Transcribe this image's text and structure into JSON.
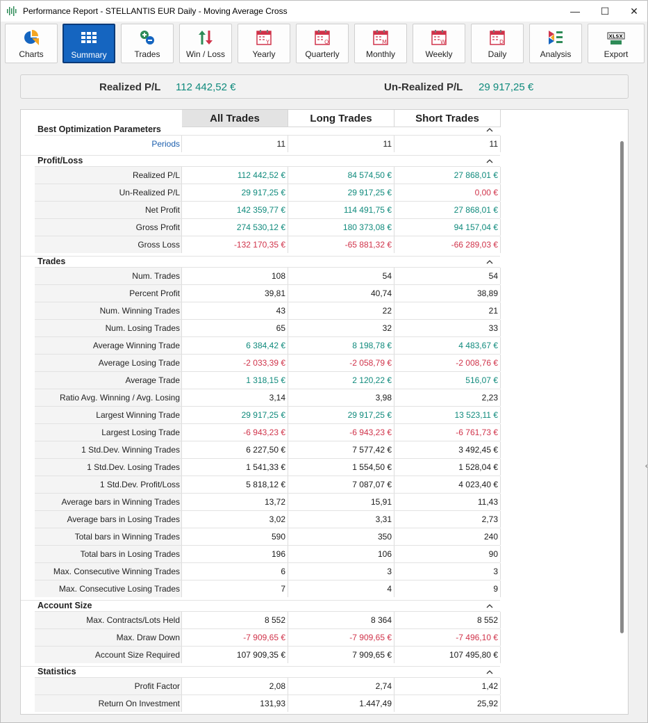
{
  "window": {
    "title": "Performance Report - STELLANTIS EUR Daily - Moving Average Cross",
    "min_glyph": "—",
    "max_glyph": "☐",
    "close_glyph": "✕"
  },
  "toolbar": {
    "buttons": [
      {
        "label": "Charts",
        "icon": "pie-chart-icon"
      },
      {
        "label": "Summary",
        "icon": "grid-icon",
        "active": true
      },
      {
        "label": "Trades",
        "icon": "add-remove-icon"
      },
      {
        "label": "Win / Loss",
        "icon": "up-down-arrows-icon"
      },
      {
        "label": "Yearly",
        "icon": "calendar-y-icon",
        "letter": "Y"
      },
      {
        "label": "Quarterly",
        "icon": "calendar-q-icon",
        "letter": "Q"
      },
      {
        "label": "Monthly",
        "icon": "calendar-m-icon",
        "letter": "M"
      },
      {
        "label": "Weekly",
        "icon": "calendar-w-icon",
        "letter": "W"
      },
      {
        "label": "Daily",
        "icon": "calendar-d-icon",
        "letter": "D"
      },
      {
        "label": "Analysis",
        "icon": "analysis-icon"
      },
      {
        "label": "Export",
        "icon": "xlsx-icon",
        "letter": "XLSX"
      }
    ]
  },
  "summary_header": {
    "realized_label": "Realized P/L",
    "realized_value": "112 442,52 €",
    "unrealized_label": "Un-Realized P/L",
    "unrealized_value": "29 917,25 €"
  },
  "columns": [
    "All Trades",
    "Long Trades",
    "Short Trades"
  ],
  "colors": {
    "positive": "#0f8a7c",
    "negative": "#d0334a",
    "accent": "#1565c0"
  },
  "sections": {
    "best": {
      "title": "Best Optimization Parameters",
      "rows": [
        {
          "label": "Periods",
          "v": [
            "11",
            "11",
            "11"
          ],
          "s": [
            "neu",
            "neu",
            "neu"
          ]
        }
      ]
    },
    "pl": {
      "title": "Profit/Loss",
      "rows": [
        {
          "label": "Realized P/L",
          "v": [
            "112 442,52 €",
            "84 574,50 €",
            "27 868,01 €"
          ],
          "s": [
            "pos",
            "pos",
            "pos"
          ]
        },
        {
          "label": "Un-Realized P/L",
          "v": [
            "29 917,25 €",
            "29 917,25 €",
            "0,00 €"
          ],
          "s": [
            "pos",
            "pos",
            "neg"
          ]
        },
        {
          "label": "Net Profit",
          "v": [
            "142 359,77 €",
            "114 491,75 €",
            "27 868,01 €"
          ],
          "s": [
            "pos",
            "pos",
            "pos"
          ]
        },
        {
          "label": "Gross Profit",
          "v": [
            "274 530,12 €",
            "180 373,08 €",
            "94 157,04 €"
          ],
          "s": [
            "pos",
            "pos",
            "pos"
          ]
        },
        {
          "label": "Gross Loss",
          "v": [
            "-132 170,35 €",
            "-65 881,32 €",
            "-66 289,03 €"
          ],
          "s": [
            "neg",
            "neg",
            "neg"
          ]
        }
      ]
    },
    "trades": {
      "title": "Trades",
      "rows": [
        {
          "label": "Num. Trades",
          "v": [
            "108",
            "54",
            "54"
          ],
          "s": [
            "neu",
            "neu",
            "neu"
          ]
        },
        {
          "label": "Percent Profit",
          "v": [
            "39,81",
            "40,74",
            "38,89"
          ],
          "s": [
            "neu",
            "neu",
            "neu"
          ]
        },
        {
          "label": "Num. Winning Trades",
          "v": [
            "43",
            "22",
            "21"
          ],
          "s": [
            "neu",
            "neu",
            "neu"
          ]
        },
        {
          "label": "Num. Losing Trades",
          "v": [
            "65",
            "32",
            "33"
          ],
          "s": [
            "neu",
            "neu",
            "neu"
          ]
        },
        {
          "label": "Average Winning Trade",
          "v": [
            "6 384,42 €",
            "8 198,78 €",
            "4 483,67 €"
          ],
          "s": [
            "pos",
            "pos",
            "pos"
          ]
        },
        {
          "label": "Average Losing Trade",
          "v": [
            "-2 033,39 €",
            "-2 058,79 €",
            "-2 008,76 €"
          ],
          "s": [
            "neg",
            "neg",
            "neg"
          ]
        },
        {
          "label": "Average Trade",
          "v": [
            "1 318,15 €",
            "2 120,22 €",
            "516,07 €"
          ],
          "s": [
            "pos",
            "pos",
            "pos"
          ]
        },
        {
          "label": "Ratio Avg. Winning / Avg. Losing",
          "v": [
            "3,14",
            "3,98",
            "2,23"
          ],
          "s": [
            "neu",
            "neu",
            "neu"
          ]
        },
        {
          "label": "Largest Winning Trade",
          "v": [
            "29 917,25 €",
            "29 917,25 €",
            "13 523,11 €"
          ],
          "s": [
            "pos",
            "pos",
            "pos"
          ]
        },
        {
          "label": "Largest Losing Trade",
          "v": [
            "-6 943,23 €",
            "-6 943,23 €",
            "-6 761,73 €"
          ],
          "s": [
            "neg",
            "neg",
            "neg"
          ]
        },
        {
          "label": "1 Std.Dev. Winning Trades",
          "v": [
            "6 227,50 €",
            "7 577,42 €",
            "3 492,45 €"
          ],
          "s": [
            "neu",
            "neu",
            "neu"
          ]
        },
        {
          "label": "1 Std.Dev. Losing Trades",
          "v": [
            "1 541,33 €",
            "1 554,50 €",
            "1 528,04 €"
          ],
          "s": [
            "neu",
            "neu",
            "neu"
          ]
        },
        {
          "label": "1 Std.Dev. Profit/Loss",
          "v": [
            "5 818,12 €",
            "7 087,07 €",
            "4 023,40 €"
          ],
          "s": [
            "neu",
            "neu",
            "neu"
          ]
        },
        {
          "label": "Average bars in Winning Trades",
          "v": [
            "13,72",
            "15,91",
            "11,43"
          ],
          "s": [
            "neu",
            "neu",
            "neu"
          ]
        },
        {
          "label": "Average bars in Losing Trades",
          "v": [
            "3,02",
            "3,31",
            "2,73"
          ],
          "s": [
            "neu",
            "neu",
            "neu"
          ]
        },
        {
          "label": "Total bars in Winning Trades",
          "v": [
            "590",
            "350",
            "240"
          ],
          "s": [
            "neu",
            "neu",
            "neu"
          ]
        },
        {
          "label": "Total bars in Losing Trades",
          "v": [
            "196",
            "106",
            "90"
          ],
          "s": [
            "neu",
            "neu",
            "neu"
          ]
        },
        {
          "label": "Max. Consecutive Winning Trades",
          "v": [
            "6",
            "3",
            "3"
          ],
          "s": [
            "neu",
            "neu",
            "neu"
          ]
        },
        {
          "label": "Max. Consecutive Losing Trades",
          "v": [
            "7",
            "4",
            "9"
          ],
          "s": [
            "neu",
            "neu",
            "neu"
          ]
        }
      ]
    },
    "account": {
      "title": "Account Size",
      "rows": [
        {
          "label": "Max. Contracts/Lots Held",
          "v": [
            "8 552",
            "8 364",
            "8 552"
          ],
          "s": [
            "neu",
            "neu",
            "neu"
          ]
        },
        {
          "label": "Max. Draw Down",
          "v": [
            "-7 909,65 €",
            "-7 909,65 €",
            "-7 496,10 €"
          ],
          "s": [
            "neg",
            "neg",
            "neg"
          ]
        },
        {
          "label": "Account Size Required",
          "v": [
            "107 909,35 €",
            "7 909,65 €",
            "107 495,80 €"
          ],
          "s": [
            "neu",
            "neu",
            "neu"
          ]
        }
      ]
    },
    "stats": {
      "title": "Statistics",
      "rows": [
        {
          "label": "Profit Factor",
          "v": [
            "2,08",
            "2,74",
            "1,42"
          ],
          "s": [
            "neu",
            "neu",
            "neu"
          ]
        },
        {
          "label": "Return On Investment",
          "v": [
            "131,93",
            "1.447,49",
            "25,92"
          ],
          "s": [
            "neu",
            "neu",
            "neu"
          ]
        }
      ]
    }
  }
}
